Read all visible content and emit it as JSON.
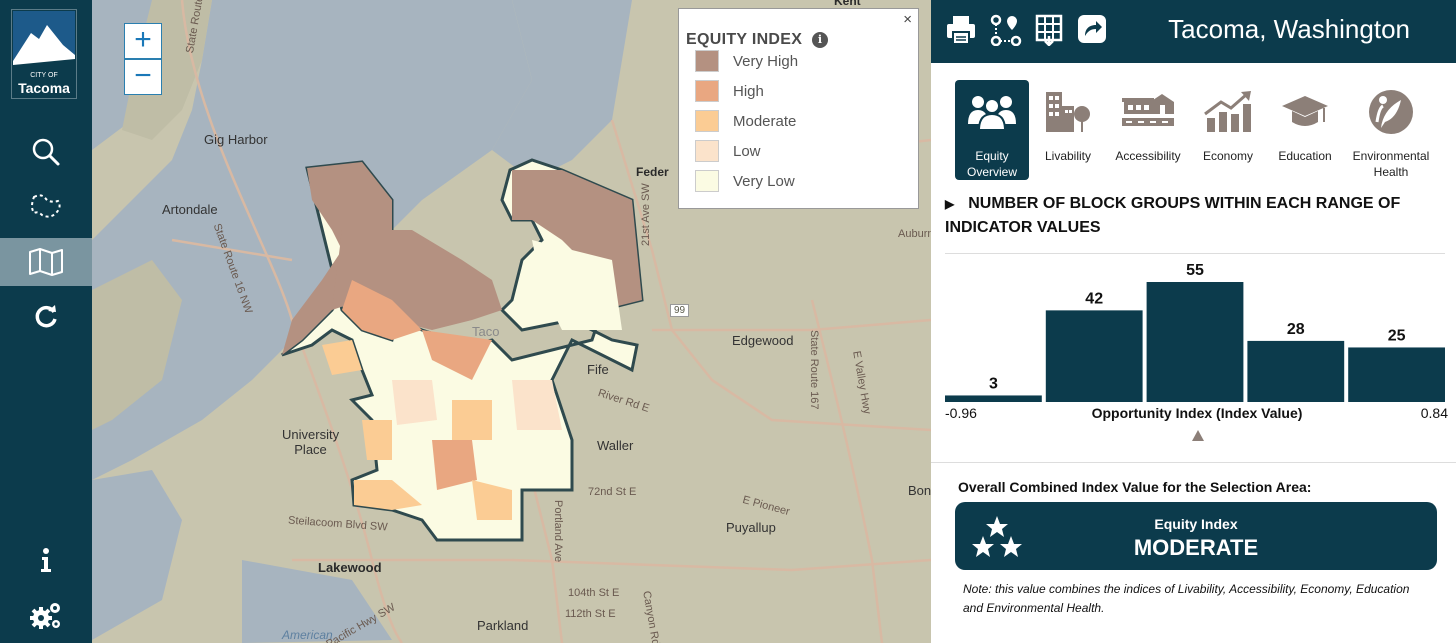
{
  "nav": {
    "logo_line1": "CITY OF",
    "logo_line2": "Tacoma",
    "items": [
      {
        "name": "search-icon"
      },
      {
        "name": "lasso-select-icon"
      },
      {
        "name": "map-icon"
      },
      {
        "name": "refresh-icon"
      },
      {
        "name": "info-icon"
      },
      {
        "name": "settings-icon"
      }
    ]
  },
  "map": {
    "zoom_in": "+",
    "zoom_out": "−",
    "labels": {
      "kent": "Kent",
      "federal": "Feder",
      "gig_harbor": "Gig Harbor",
      "artondale": "Artondale",
      "university_place": "University\nPlace",
      "lakewood": "Lakewood",
      "parkland": "Parkland",
      "puyallup": "Puyallup",
      "edgewood": "Edgewood",
      "fife": "Fife",
      "waller": "Waller",
      "bon": "Bon",
      "tacoma": "Taco",
      "american": "American",
      "sr16": "State Route 16 NW",
      "sr16b": "State Route",
      "sr167": "State Route 167",
      "r99": "99",
      "auburn": "Auburn",
      "steilacoom": "Steilacoom Blvd SW",
      "pacific": "Pacific Hwy SW",
      "river": "River Rd E",
      "e72": "72nd St E",
      "s104": "104th St E",
      "s112": "112th St E",
      "portland": "Portland Ave",
      "canyon": "Canyon Rd",
      "pioneer": "E Pioneer",
      "valley": "E Valley Hwy",
      "ave21": "21st Ave SW"
    }
  },
  "legend": {
    "title": "EQUITY INDEX",
    "close": "×",
    "info": "i",
    "items": [
      {
        "label": "Very High",
        "color": "#b49181"
      },
      {
        "label": "High",
        "color": "#e9a781"
      },
      {
        "label": "Moderate",
        "color": "#fbcc94"
      },
      {
        "label": "Low",
        "color": "#fbe3cb"
      },
      {
        "label": "Very Low",
        "color": "#fbfbe3"
      }
    ]
  },
  "toolbar": {
    "icons": [
      "print-icon",
      "route-icon",
      "table-download-icon",
      "share-icon"
    ],
    "place": "Tacoma, Washington"
  },
  "tabs": [
    {
      "label": "Equity Overview",
      "icon": "people-icon",
      "active": true
    },
    {
      "label": "Livability",
      "icon": "buildings-icon",
      "active": false
    },
    {
      "label": "Accessibility",
      "icon": "transit-icon",
      "active": false
    },
    {
      "label": "Economy",
      "icon": "growth-chart-icon",
      "active": false
    },
    {
      "label": "Education",
      "icon": "graduation-cap-icon",
      "active": false
    },
    {
      "label": "Environmental Health",
      "icon": "leaf-icon",
      "active": false
    }
  ],
  "histogram": {
    "title": "NUMBER OF BLOCK GROUPS WITHIN EACH RANGE OF INDICATOR VALUES",
    "marker": "▶"
  },
  "chart_data": {
    "type": "bar",
    "categories": [
      "1",
      "2",
      "3",
      "4",
      "5"
    ],
    "values": [
      3,
      42,
      55,
      28,
      25
    ],
    "xlabel": "Opportunity Index (Index Value)",
    "xmin_label": "-0.96",
    "xmax_label": "0.84",
    "ylim": [
      0,
      55
    ],
    "bar_color": "#0c3b4c",
    "marker_position": 0.5
  },
  "overall": {
    "title": "Overall Combined Index Value for the Selection Area:",
    "index_name": "Equity Index",
    "value": "MODERATE",
    "stars": 3
  },
  "note": "Note: this value combines the indices of Livability, Accessibility, Economy, Education and Environmental Health."
}
